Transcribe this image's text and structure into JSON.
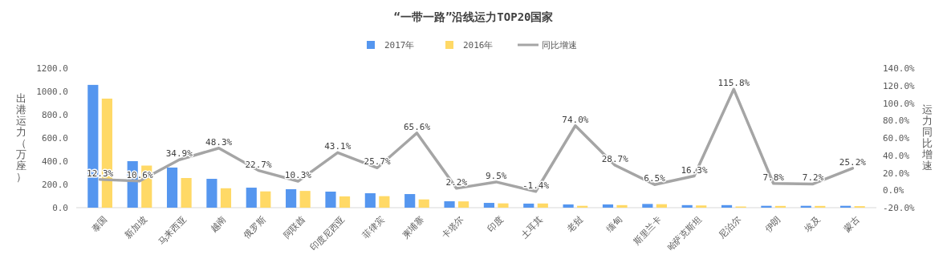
{
  "chart_data": {
    "type": "bar",
    "title": "“一带一路”沿线运力TOP20国家",
    "ylabel": "出港运力（万座）",
    "y2label": "运力同比增速",
    "categories": [
      "泰国",
      "新加坡",
      "马来西亚",
      "越南",
      "俄罗斯",
      "阿联酋",
      "印度尼西亚",
      "菲律宾",
      "柬埔寨",
      "卡塔尔",
      "印度",
      "土耳其",
      "老挝",
      "缅甸",
      "斯里兰卡",
      "哈萨克斯坦",
      "尼泊尔",
      "伊朗",
      "埃及",
      "蒙古"
    ],
    "series": [
      {
        "name": "2017年",
        "color": "#5596ef",
        "values": [
          1056,
          400,
          345,
          248,
          172,
          159,
          138,
          124,
          117,
          55,
          41,
          35,
          28,
          28,
          32,
          22,
          22,
          16,
          16,
          16
        ]
      },
      {
        "name": "2016年",
        "color": "#ffd966",
        "values": [
          938,
          362,
          255,
          167,
          140,
          144,
          97,
          99,
          71,
          54,
          37,
          36,
          16,
          22,
          30,
          19,
          10,
          15,
          15,
          13
        ]
      },
      {
        "name": "同比增速",
        "type": "line",
        "axis": "y2",
        "color": "#a5a5a5",
        "values": [
          12.3,
          10.6,
          34.9,
          48.3,
          22.7,
          10.3,
          43.1,
          25.7,
          65.6,
          2.2,
          9.5,
          -1.4,
          74.0,
          28.7,
          6.5,
          16.3,
          115.8,
          7.8,
          7.2,
          25.2
        ],
        "value_labels": [
          "12.3%",
          "10.6%",
          "34.9%",
          "48.3%",
          "22.7%",
          "10.3%",
          "43.1%",
          "25.7%",
          "65.6%",
          "2.2%",
          "9.5%",
          "-1.4%",
          "74.0%",
          "28.7%",
          "6.5%",
          "16.3%",
          "115.8%",
          "7.8%",
          "7.2%",
          "25.2%"
        ]
      }
    ],
    "ylim": [
      0,
      1200
    ],
    "yticks": [
      {
        "value": 0,
        "label": "0.0"
      },
      {
        "value": 200,
        "label": "200.0"
      },
      {
        "value": 400,
        "label": "400.0"
      },
      {
        "value": 600,
        "label": "600.0"
      },
      {
        "value": 800,
        "label": "800.0"
      },
      {
        "value": 1000,
        "label": "1000.0"
      },
      {
        "value": 1200,
        "label": "1200.0"
      }
    ],
    "y2lim": [
      -20,
      140
    ],
    "y2ticks": [
      {
        "value": -20,
        "label": "-20.0%"
      },
      {
        "value": 0,
        "label": "0.0%"
      },
      {
        "value": 20,
        "label": "20.0%"
      },
      {
        "value": 40,
        "label": "40.0%"
      },
      {
        "value": 60,
        "label": "60.0%"
      },
      {
        "value": 80,
        "label": "80.0%"
      },
      {
        "value": 100,
        "label": "100.0%"
      },
      {
        "value": 120,
        "label": "120.0%"
      },
      {
        "value": 140,
        "label": "140.0%"
      }
    ],
    "grid": false,
    "legend": "top"
  }
}
